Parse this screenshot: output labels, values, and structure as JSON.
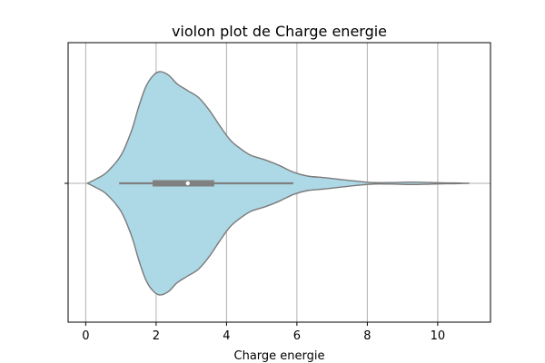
{
  "chart_data": {
    "type": "violin",
    "title": "violon plot de Charge energie",
    "xlabel": "Charge energie",
    "ylabel": "",
    "xlim": [
      -0.5,
      11.5
    ],
    "xticks": [
      0,
      2,
      4,
      6,
      8,
      10
    ],
    "grid": "vertical",
    "colors": {
      "violin_fill": "#add8e6",
      "violin_edge": "#7a7a7a",
      "box": "#808080",
      "median": "#ffffff",
      "grid": "#b0b0b0"
    },
    "density_profile": [
      {
        "x": 0.05,
        "d": 0.0
      },
      {
        "x": 0.3,
        "d": 0.04
      },
      {
        "x": 0.6,
        "d": 0.1
      },
      {
        "x": 1.0,
        "d": 0.25
      },
      {
        "x": 1.3,
        "d": 0.47
      },
      {
        "x": 1.5,
        "d": 0.68
      },
      {
        "x": 1.7,
        "d": 0.86
      },
      {
        "x": 1.9,
        "d": 0.96
      },
      {
        "x": 2.1,
        "d": 1.0
      },
      {
        "x": 2.35,
        "d": 0.97
      },
      {
        "x": 2.6,
        "d": 0.89
      },
      {
        "x": 2.9,
        "d": 0.83
      },
      {
        "x": 3.2,
        "d": 0.77
      },
      {
        "x": 3.5,
        "d": 0.66
      },
      {
        "x": 3.8,
        "d": 0.52
      },
      {
        "x": 4.1,
        "d": 0.39
      },
      {
        "x": 4.4,
        "d": 0.31
      },
      {
        "x": 4.7,
        "d": 0.25
      },
      {
        "x": 5.1,
        "d": 0.21
      },
      {
        "x": 5.5,
        "d": 0.16
      },
      {
        "x": 5.9,
        "d": 0.1
      },
      {
        "x": 6.3,
        "d": 0.065
      },
      {
        "x": 6.8,
        "d": 0.05
      },
      {
        "x": 7.3,
        "d": 0.032
      },
      {
        "x": 7.8,
        "d": 0.016
      },
      {
        "x": 8.2,
        "d": 0.006
      },
      {
        "x": 8.7,
        "d": 0.007
      },
      {
        "x": 9.2,
        "d": 0.011
      },
      {
        "x": 9.6,
        "d": 0.009
      },
      {
        "x": 10.0,
        "d": 0.005
      },
      {
        "x": 10.5,
        "d": 0.003
      },
      {
        "x": 10.9,
        "d": 0.0
      }
    ],
    "box": {
      "whisker_low": 0.95,
      "q1": 1.9,
      "median": 2.9,
      "q3": 3.65,
      "whisker_high": 5.9
    }
  }
}
